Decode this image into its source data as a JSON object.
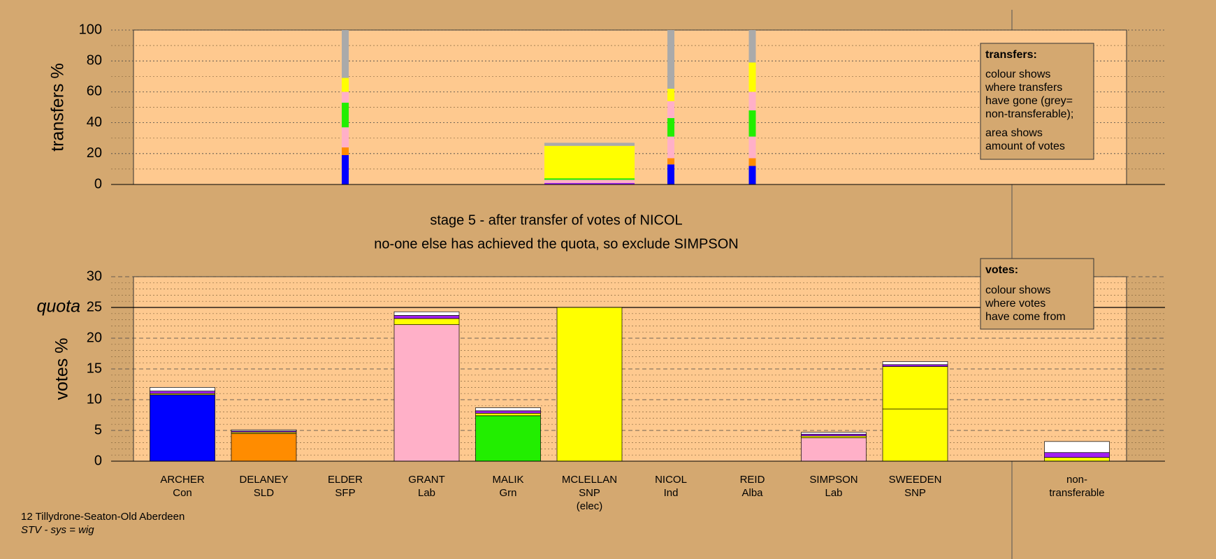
{
  "chart_data": [
    {
      "type": "stacked-bar",
      "ylabel": "transfers %",
      "ylim": [
        0,
        100
      ],
      "yticks": [
        0,
        20,
        40,
        60,
        80,
        100
      ],
      "grid": true,
      "minor_grid": 2,
      "note": {
        "heading": "transfers:",
        "paragraphs": [
          [
            "colour shows",
            "where transfers",
            "have gone (grey=",
            "non-transferable);"
          ],
          [
            "area shows",
            "amount of votes"
          ]
        ]
      },
      "series": [
        {
          "color": "#a020f0",
          "values": [
            null,
            null,
            0,
            null,
            null,
            1,
            0,
            0,
            null,
            null,
            null
          ]
        },
        {
          "color": "#0000ff",
          "values": [
            null,
            null,
            19,
            null,
            null,
            0,
            13,
            12,
            null,
            null,
            null
          ]
        },
        {
          "color": "#ff8c00",
          "values": [
            null,
            null,
            5,
            null,
            null,
            0,
            4,
            5,
            null,
            null,
            null
          ]
        },
        {
          "color": "#ffb0c8",
          "values": [
            null,
            null,
            13,
            null,
            null,
            2,
            14,
            14,
            null,
            null,
            null
          ]
        },
        {
          "color": "#22ee00",
          "values": [
            null,
            null,
            16,
            null,
            null,
            1,
            12,
            17,
            null,
            null,
            null
          ]
        },
        {
          "color": "#ffb0c8",
          "values": [
            null,
            null,
            7,
            null,
            null,
            0,
            11,
            12,
            null,
            null,
            null
          ]
        },
        {
          "color": "#ffff00",
          "values": [
            null,
            null,
            9,
            null,
            null,
            21,
            8,
            19,
            null,
            null,
            null
          ]
        },
        {
          "color": "#aaaaaa",
          "values": [
            null,
            null,
            31,
            null,
            null,
            2,
            38,
            21,
            null,
            null,
            null
          ]
        }
      ]
    },
    {
      "type": "stacked-bar",
      "ylabel": "votes %",
      "ylim": [
        0,
        30
      ],
      "yticks": [
        0,
        5,
        10,
        15,
        20,
        25,
        30
      ],
      "grid": true,
      "minor_grid": 5,
      "title": [
        "stage 5 - after transfer of votes of NICOL",
        "no-one else has achieved the quota, so exclude SIMPSON"
      ],
      "reference_line": {
        "value": 25,
        "label": "quota"
      },
      "note": {
        "heading": "votes:",
        "paragraphs": [
          [
            "colour shows",
            "where votes",
            "have come from"
          ]
        ]
      },
      "categories": [
        [
          "ARCHER",
          "Con"
        ],
        [
          "DELANEY",
          "SLD"
        ],
        [
          "ELDER",
          "SFP"
        ],
        [
          "GRANT",
          "Lab"
        ],
        [
          "MALIK",
          "Grn"
        ],
        [
          "MCLELLAN",
          "SNP",
          "(elec)"
        ],
        [
          "NICOL",
          "Ind"
        ],
        [
          "REID",
          "Alba"
        ],
        [
          "SIMPSON",
          "Lab"
        ],
        [
          "SWEEDEN",
          "SNP"
        ],
        [
          "non-",
          "transferable"
        ]
      ],
      "series": [
        {
          "colors": [
            "#0000ff",
            "#ff8c00",
            "#ff8c00",
            "#ffb0c8",
            "#22ee00",
            "#ffff00",
            "#ffffff",
            "#ffffff",
            "#ffb0c8",
            "#ffff00",
            "#ffff00"
          ],
          "values": [
            10.8,
            4.5,
            0,
            22.2,
            7.4,
            25,
            0,
            0,
            3.8,
            8.5,
            0
          ]
        },
        {
          "color": "#ffff00",
          "values": [
            0.2,
            0.2,
            0,
            1.0,
            0.4,
            0,
            0,
            0,
            0.3,
            6.9,
            0.6
          ]
        },
        {
          "color": "#a020f0",
          "values": [
            0.4,
            0.2,
            0,
            0.5,
            0.4,
            0,
            0,
            0,
            0.3,
            0.3,
            0.8
          ]
        },
        {
          "color": "#ffffff",
          "values": [
            0.6,
            0.2,
            0,
            0.6,
            0.5,
            0,
            0,
            0,
            0.3,
            0.5,
            1.8
          ]
        }
      ]
    }
  ],
  "footer": {
    "lines": [
      "12 Tillydrone-Seaton-Old Aberdeen",
      "STV - sys = wig"
    ]
  }
}
